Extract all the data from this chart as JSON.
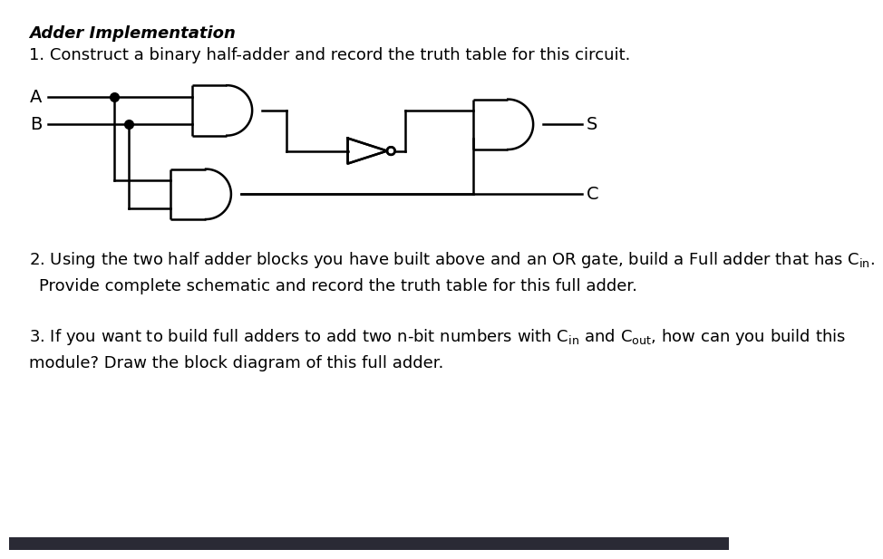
{
  "title": "Adder Implementation",
  "q1_text": "1. Construct a binary half-adder and record the truth table for this circuit.",
  "q2_line1": "2. Using the two half adder blocks you have built above and an OR gate, build a Full adder that has Cₙ.",
  "q2_line2": " Provide complete schematic and record the truth table for this full adder.",
  "q3_line1": "3. If you want to build full adders to add two n-bit numbers with Cₙ and Cₒᵤₜ, how can you build this",
  "q3_line2": "module? Draw the block diagram of this full adder.",
  "bg_color": "#ffffff",
  "line_color": "#000000",
  "bar_color": "#2a2a35",
  "font_size_title": 13,
  "font_size_body": 13
}
